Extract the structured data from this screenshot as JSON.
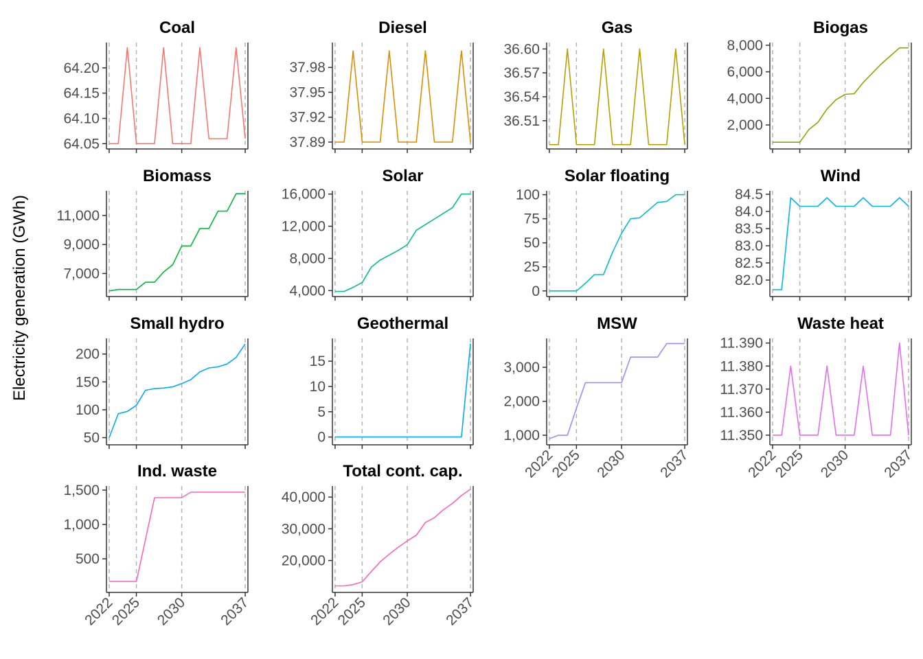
{
  "figure": {
    "ylabel": "Electricity generation (GWh)"
  },
  "chart_data": {
    "type": "line",
    "x": [
      2022,
      2023,
      2024,
      2025,
      2026,
      2027,
      2028,
      2029,
      2030,
      2031,
      2032,
      2033,
      2034,
      2035,
      2036,
      2037
    ],
    "x_breaks": [
      2022,
      2025,
      2030,
      2037
    ],
    "x_vlines": [
      2022,
      2025,
      2030,
      2037
    ],
    "xlim": [
      2021.7,
      2037.3
    ],
    "ylabel": "Electricity generation (GWh)",
    "grid": false,
    "facets": [
      {
        "title": "Coal",
        "color": "#F8766D",
        "ylim": [
          64.045,
          64.25
        ],
        "yticks": [
          64.05,
          64.1,
          64.15,
          64.2
        ],
        "ytick_labels": [
          "64.05",
          "64.10",
          "64.15",
          "64.20"
        ],
        "values": [
          64.05,
          64.05,
          64.24,
          64.05,
          64.05,
          64.05,
          64.24,
          64.05,
          64.05,
          64.05,
          64.24,
          64.06,
          64.06,
          64.06,
          64.24,
          64.06
        ]
      },
      {
        "title": "Diesel",
        "color": "#DE8C00",
        "ylim": [
          37.885,
          38.01
        ],
        "yticks": [
          37.89,
          37.92,
          37.95,
          37.98
        ],
        "ytick_labels": [
          "37.89",
          "37.92",
          "37.95",
          "37.98"
        ],
        "values": [
          37.89,
          37.89,
          38.0,
          37.89,
          37.89,
          37.89,
          38.0,
          37.89,
          37.89,
          37.89,
          38.0,
          37.89,
          37.89,
          37.89,
          38.0,
          37.89
        ]
      },
      {
        "title": "Gas",
        "color": "#B79F00",
        "ylim": [
          36.478,
          36.608
        ],
        "yticks": [
          36.51,
          36.54,
          36.57,
          36.6
        ],
        "ytick_labels": [
          "36.51",
          "36.54",
          "36.57",
          "36.60"
        ],
        "values": [
          36.48,
          36.48,
          36.6,
          36.48,
          36.48,
          36.48,
          36.6,
          36.48,
          36.48,
          36.48,
          36.6,
          36.48,
          36.48,
          36.48,
          36.6,
          36.48
        ]
      },
      {
        "title": "Biogas",
        "color": "#7CAE00",
        "ylim": [
          400,
          8200
        ],
        "yticks": [
          2000,
          4000,
          6000,
          8000
        ],
        "ytick_labels": [
          "2,000",
          "4,000",
          "6,000",
          "8,000"
        ],
        "values": [
          700,
          700,
          700,
          700,
          1650,
          2200,
          3200,
          3900,
          4300,
          4350,
          5200,
          5900,
          6600,
          7200,
          7800,
          7800
        ]
      },
      {
        "title": "Biomass",
        "color": "#00BA38",
        "ylim": [
          5600,
          12700
        ],
        "yticks": [
          7000,
          9000,
          11000
        ],
        "ytick_labels": [
          "7,000",
          "9,000",
          "11,000"
        ],
        "values": [
          5800,
          5900,
          5900,
          5900,
          6400,
          6400,
          7100,
          7600,
          8900,
          8900,
          10100,
          10100,
          11300,
          11300,
          12500,
          12500
        ]
      },
      {
        "title": "Solar",
        "color": "#00C08B",
        "ylim": [
          3600,
          16400
        ],
        "yticks": [
          4000,
          8000,
          12000,
          16000
        ],
        "ytick_labels": [
          "4,000",
          "8,000",
          "12,000",
          "16,000"
        ],
        "values": [
          3900,
          3900,
          4400,
          5000,
          6900,
          7800,
          8400,
          9000,
          9700,
          11500,
          12200,
          12900,
          13600,
          14300,
          16000,
          16000
        ]
      },
      {
        "title": "Solar floating",
        "color": "#00BFC4",
        "ylim": [
          -3,
          104
        ],
        "yticks": [
          0,
          25,
          50,
          75,
          100
        ],
        "ytick_labels": [
          "0",
          "25",
          "50",
          "75",
          "100"
        ],
        "values": [
          0,
          0,
          0,
          0,
          8,
          17,
          17,
          40,
          60,
          75,
          76,
          84,
          92,
          93,
          100,
          100
        ]
      },
      {
        "title": "Wind",
        "color": "#00B4EF",
        "ylim": [
          81.6,
          84.6
        ],
        "yticks": [
          82.0,
          82.5,
          83.0,
          83.5,
          84.0,
          84.5
        ],
        "ytick_labels": [
          "82.0",
          "82.5",
          "83.0",
          "83.5",
          "84.0",
          "84.5"
        ],
        "values": [
          81.72,
          81.72,
          84.4,
          84.15,
          84.15,
          84.15,
          84.4,
          84.15,
          84.15,
          84.15,
          84.4,
          84.15,
          84.15,
          84.15,
          84.4,
          84.15
        ]
      },
      {
        "title": "Small hydro",
        "color": "#00A9FF",
        "ylim": [
          42,
          228
        ],
        "yticks": [
          50,
          100,
          150,
          200
        ],
        "ytick_labels": [
          "50",
          "100",
          "150",
          "200"
        ],
        "values": [
          50,
          93,
          97,
          108,
          135,
          138,
          139,
          141,
          147,
          154,
          168,
          175,
          177,
          182,
          194,
          218
        ]
      },
      {
        "title": "Geothermal",
        "color": "#00A9FF",
        "ylim": [
          -1,
          19.5
        ],
        "yticks": [
          0,
          5,
          10,
          15
        ],
        "ytick_labels": [
          "0",
          "5",
          "10",
          "15"
        ],
        "values": [
          0,
          0,
          0,
          0,
          0,
          0,
          0,
          0,
          0,
          0,
          0,
          0,
          0,
          0,
          0,
          18.5
        ]
      },
      {
        "title": "MSW",
        "color": "#9590FF",
        "ylim": [
          800,
          3850
        ],
        "yticks": [
          1000,
          2000,
          3000
        ],
        "ytick_labels": [
          "1,000",
          "2,000",
          "3,000"
        ],
        "values": [
          900,
          1000,
          1000,
          1800,
          2550,
          2550,
          2550,
          2550,
          2550,
          3300,
          3300,
          3300,
          3300,
          3700,
          3700,
          3700
        ]
      },
      {
        "title": "Waste heat",
        "color": "#E76BF3",
        "ylim": [
          11.347,
          11.392
        ],
        "yticks": [
          11.35,
          11.36,
          11.37,
          11.38,
          11.39
        ],
        "ytick_labels": [
          "11.350",
          "11.360",
          "11.370",
          "11.380",
          "11.390"
        ],
        "values": [
          11.35,
          11.35,
          11.38,
          11.35,
          11.35,
          11.35,
          11.38,
          11.35,
          11.35,
          11.35,
          11.38,
          11.35,
          11.35,
          11.35,
          11.39,
          11.35
        ]
      },
      {
        "title": "Ind. waste",
        "color": "#FF62BC",
        "ylim": [
          50,
          1560
        ],
        "yticks": [
          500,
          1000,
          1500
        ],
        "ytick_labels": [
          "500",
          "1,000",
          "1,500"
        ],
        "values": [
          170,
          170,
          170,
          170,
          780,
          1390,
          1390,
          1390,
          1390,
          1470,
          1470,
          1470,
          1470,
          1470,
          1470,
          1470
        ]
      },
      {
        "title": "Total cont. cap.",
        "color": "#FF62BC",
        "ylim": [
          10800,
          43500
        ],
        "yticks": [
          20000,
          30000,
          40000
        ],
        "ytick_labels": [
          "20,000",
          "30,000",
          "40,000"
        ],
        "values": [
          12000,
          12000,
          12400,
          13300,
          16500,
          19600,
          22000,
          24200,
          26200,
          28000,
          32000,
          33500,
          36000,
          38000,
          40500,
          42500
        ]
      }
    ],
    "x_tick_labels": [
      "2022",
      "2025",
      "2030",
      "2037"
    ]
  }
}
